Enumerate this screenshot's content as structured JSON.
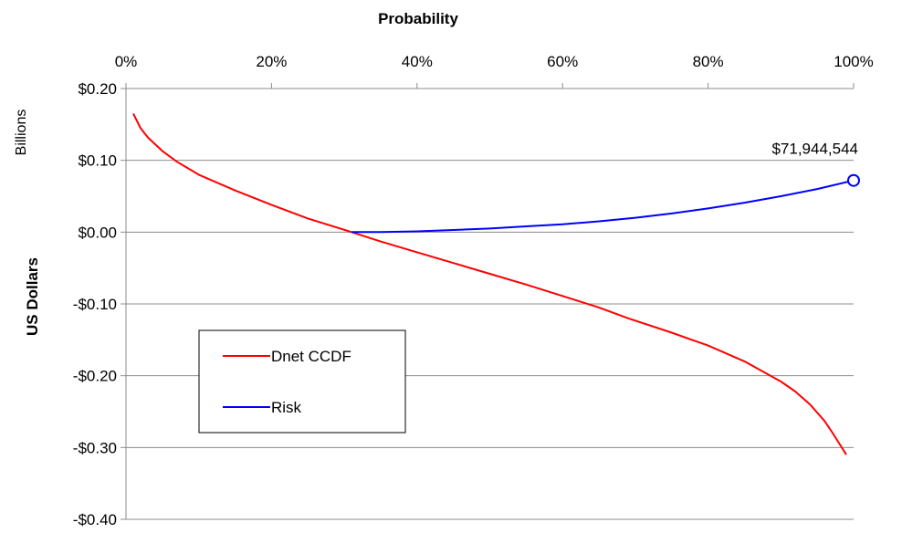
{
  "chart_data": {
    "type": "line",
    "title": "",
    "xlabel": "Probability",
    "ylabel": "US Dollars",
    "y_units_label": "Billions",
    "xlim": [
      0,
      100
    ],
    "ylim": [
      -0.4,
      0.2
    ],
    "x_ticks": [
      0,
      20,
      40,
      60,
      80,
      100
    ],
    "x_tick_labels": [
      "0%",
      "20%",
      "40%",
      "60%",
      "80%",
      "100%"
    ],
    "y_ticks": [
      0.2,
      0.1,
      0.0,
      -0.1,
      -0.2,
      -0.3,
      -0.4
    ],
    "y_tick_labels": [
      "$0.20",
      "$0.10",
      "$0.00",
      "-$0.10",
      "-$0.20",
      "-$0.30",
      "-$0.40"
    ],
    "x_axis_position": "top",
    "grid": "horizontal",
    "legend_position": "lower-left",
    "series": [
      {
        "name": "Dnet CCDF",
        "color": "#ff0000",
        "x": [
          1,
          2,
          3,
          5,
          7,
          10,
          15,
          20,
          25,
          31,
          35,
          40,
          45,
          50,
          55,
          60,
          65,
          69,
          75,
          80,
          85,
          90,
          92,
          94,
          96,
          97,
          98,
          99
        ],
        "y": [
          0.165,
          0.145,
          0.132,
          0.113,
          0.098,
          0.08,
          0.058,
          0.038,
          0.019,
          0.0,
          -0.013,
          -0.028,
          -0.043,
          -0.058,
          -0.073,
          -0.089,
          -0.105,
          -0.12,
          -0.14,
          -0.158,
          -0.18,
          -0.208,
          -0.222,
          -0.24,
          -0.263,
          -0.278,
          -0.294,
          -0.31
        ]
      },
      {
        "name": "Risk",
        "color": "#0000ff",
        "x": [
          31,
          35,
          40,
          45,
          50,
          55,
          60,
          65,
          70,
          75,
          80,
          85,
          90,
          95,
          100
        ],
        "y": [
          0.0,
          0.0,
          0.001,
          0.003,
          0.005,
          0.008,
          0.011,
          0.015,
          0.02,
          0.026,
          0.033,
          0.041,
          0.05,
          0.06,
          0.072
        ]
      }
    ],
    "annotations": [
      {
        "text": "$71,944,544",
        "x": 100,
        "y": 0.072,
        "series": "Risk",
        "marker": "open-circle"
      }
    ]
  }
}
